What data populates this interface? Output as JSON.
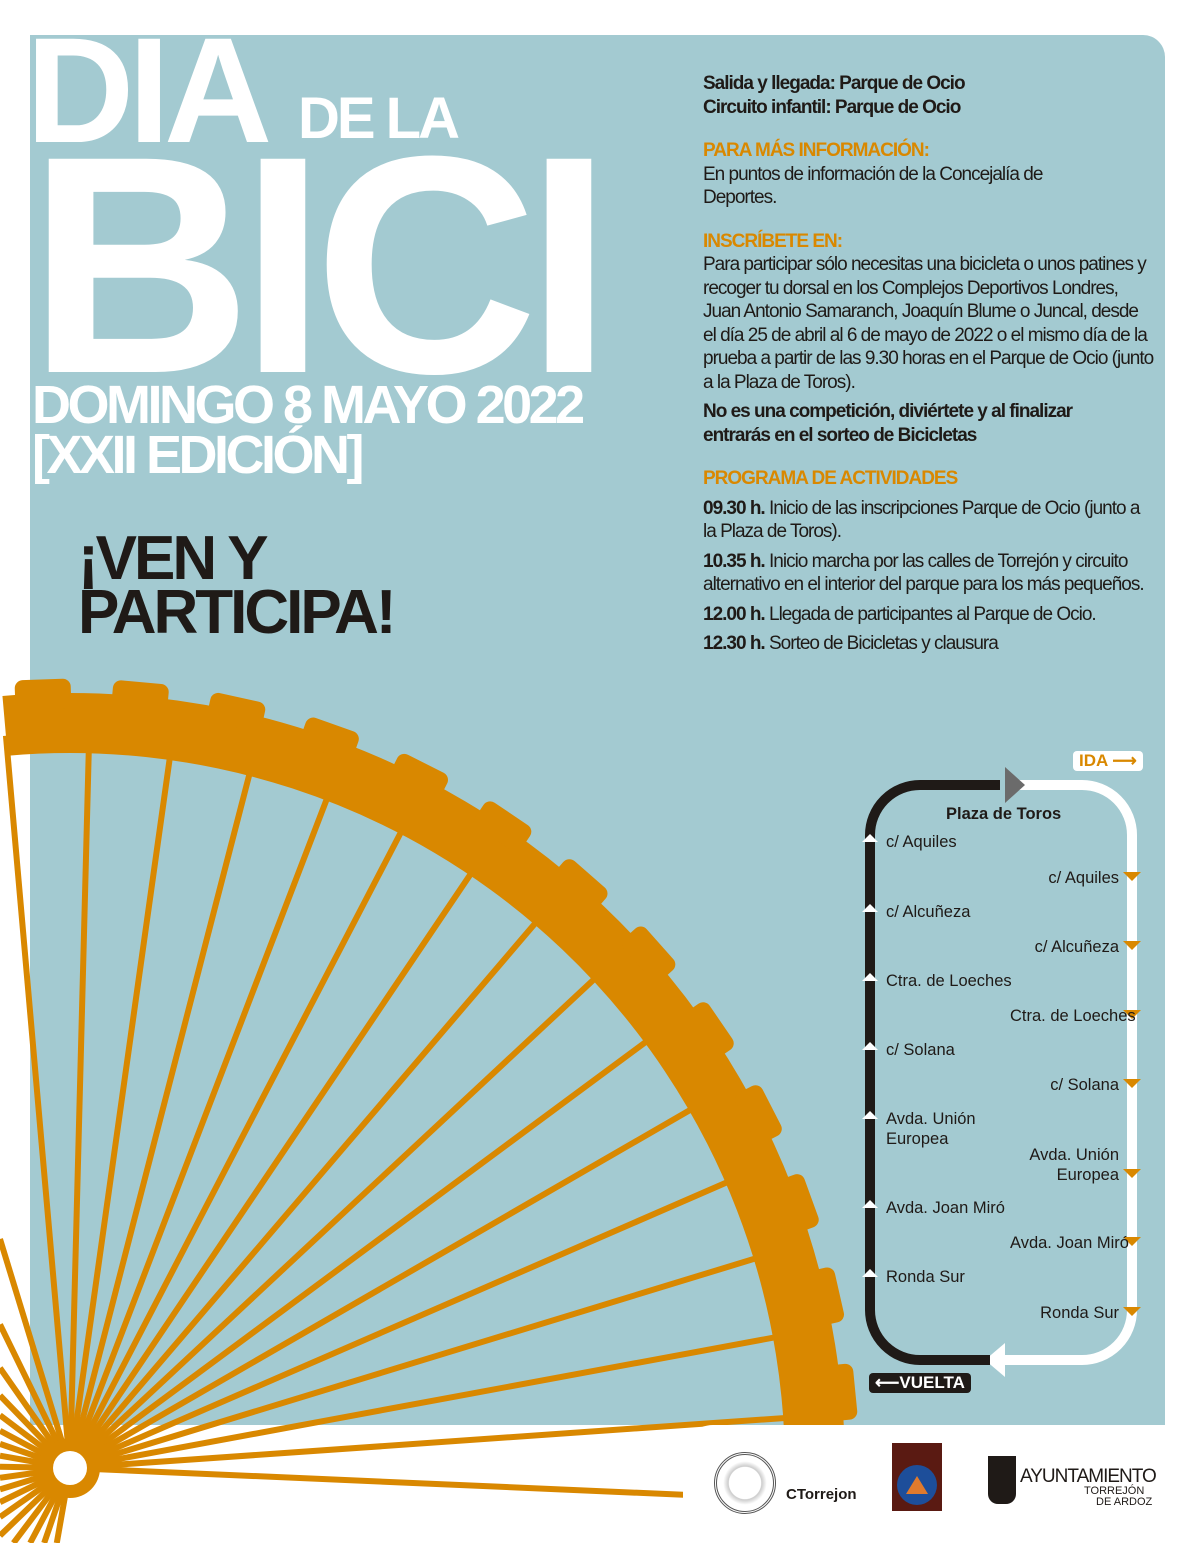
{
  "title": {
    "line1": "DÍA",
    "line1b": "DE LA",
    "line2": "BICI",
    "date": "DOMINGO 8 MAYO 2022",
    "edition": "[XXII EDICIÓN]"
  },
  "slogan": {
    "line1": "¡VEN Y",
    "line2": "PARTICIPA!"
  },
  "info": {
    "start": "Salida y llegada: Parque de Ocio",
    "kids": "Circuito infantil: Parque de Ocio",
    "more_heading": "PARA MÁS INFORMACIÓN:",
    "more_text": "En puntos de información de la Concejalía de Deportes.",
    "register_heading": "INSCRÍBETE EN:",
    "register_text": "Para participar sólo necesitas una bicicleta o unos patines y recoger tu dorsal en los Complejos Deportivos Londres, Juan Antonio Samaranch, Joaquín Blume o Juncal, desde el día 25 de abril al 6 de mayo de 2022 o el mismo día de la prueba a partir de las 9.30 horas en el Parque de Ocio (junto a la Plaza de Toros).",
    "notice": "No es una competición, diviértete y al finalizar entrarás en el sorteo de Bicicletas",
    "program_heading": "PROGRAMA DE ACTIVIDADES",
    "program": [
      {
        "time": "09.30 h.",
        "text": "Inicio de las inscripciones Parque de Ocio (junto a la Plaza de Toros)."
      },
      {
        "time": "10.35 h.",
        "text": "Inicio marcha por las calles de Torrejón y circuito alternativo en el interior del parque para los más pequeños."
      },
      {
        "time": "12.00 h.",
        "text": "Llegada de participantes al Parque de Ocio."
      },
      {
        "time": "12.30 h.",
        "text": "Sorteo de Bicicletas y clausura"
      }
    ]
  },
  "route": {
    "ida": "IDA",
    "vuelta": "VUELTA",
    "top": "Plaza de Toros",
    "ida_streets": [
      "c/ Aquiles",
      "c/ Alcuñeza",
      "Ctra. de Loeches",
      "c/ Solana",
      "Avda. Unión Europea",
      "Avda. Joan Miró",
      "Ronda Sur"
    ],
    "vuelta_streets": [
      "c/ Aquiles",
      "c/ Alcuñeza",
      "Ctra. de Loeches",
      "c/ Solana",
      "Avda. Unión Europea",
      "Avda. Joan Miró",
      "Ronda Sur"
    ]
  },
  "logos": {
    "ct": "CTorrejon",
    "pc": "PROTECCION CIVIL",
    "ayto": "AYUNTAMIENTO",
    "ayto_sub1": "TORREJÓN",
    "ayto_sub2": "DE ARDOZ"
  },
  "colors": {
    "panel": "#a3cad1",
    "orange": "#d98800",
    "dark": "#1f1a17"
  }
}
